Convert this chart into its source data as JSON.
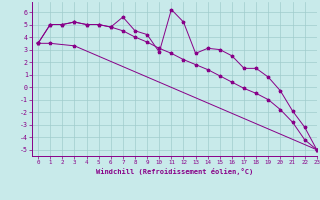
{
  "xlabel": "Windchill (Refroidissement éolien,°C)",
  "background_color": "#c8eaea",
  "grid_color": "#a0cccc",
  "line_color": "#880088",
  "line1_x": [
    0,
    1,
    2,
    3,
    4,
    5,
    6,
    7,
    8,
    9,
    10,
    11,
    12,
    13,
    14,
    15,
    16,
    17,
    18,
    19,
    20,
    21,
    22,
    23
  ],
  "line1_y": [
    3.5,
    5.0,
    5.0,
    5.2,
    5.0,
    5.0,
    4.8,
    5.6,
    4.5,
    4.2,
    2.8,
    6.2,
    5.2,
    2.7,
    3.1,
    3.0,
    2.5,
    1.5,
    1.5,
    0.8,
    -0.3,
    -1.9,
    -3.2,
    -5.0
  ],
  "line2_x": [
    0,
    1,
    3,
    23
  ],
  "line2_y": [
    3.5,
    3.5,
    3.3,
    -5.0
  ],
  "line3_x": [
    0,
    1,
    2,
    3,
    4,
    5,
    6,
    7,
    8,
    9,
    10,
    11,
    12,
    13,
    14,
    15,
    16,
    17,
    18,
    19,
    20,
    21,
    22,
    23
  ],
  "line3_y": [
    3.5,
    5.0,
    5.0,
    5.2,
    5.0,
    5.0,
    4.8,
    4.5,
    4.0,
    3.6,
    3.1,
    2.7,
    2.2,
    1.8,
    1.4,
    0.9,
    0.4,
    -0.1,
    -0.5,
    -1.0,
    -1.8,
    -2.8,
    -4.2,
    -5.0
  ],
  "ylim": [
    -5.5,
    6.8
  ],
  "xlim": [
    -0.5,
    23
  ],
  "yticks": [
    -5,
    -4,
    -3,
    -2,
    -1,
    0,
    1,
    2,
    3,
    4,
    5,
    6
  ],
  "xticks": [
    0,
    1,
    2,
    3,
    4,
    5,
    6,
    7,
    8,
    9,
    10,
    11,
    12,
    13,
    14,
    15,
    16,
    17,
    18,
    19,
    20,
    21,
    22,
    23
  ]
}
